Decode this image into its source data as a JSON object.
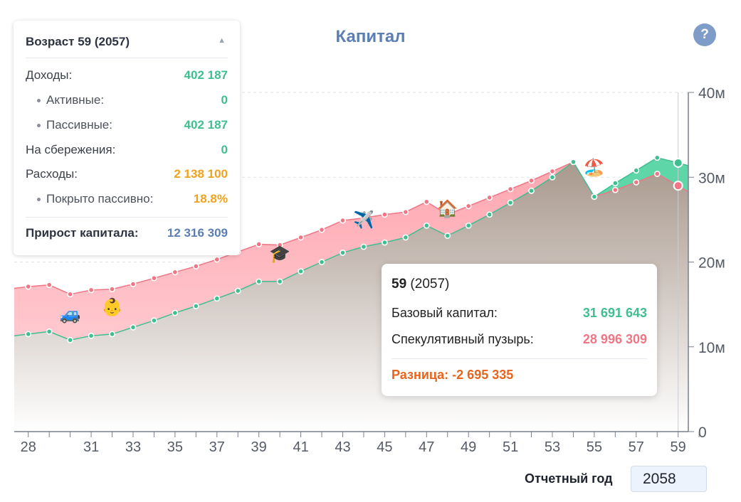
{
  "title": "Капитал",
  "help_label": "?",
  "summary": {
    "heading": "Возраст 59 (2057)",
    "rows": [
      {
        "label": "Доходы:",
        "value": "402 187",
        "sub": false,
        "color": "#3fbf8f"
      },
      {
        "label": "Активные:",
        "value": "0",
        "sub": true,
        "color": "#3fbf8f"
      },
      {
        "label": "Пассивные:",
        "value": "402 187",
        "sub": true,
        "color": "#3fbf8f"
      },
      {
        "label": "На сбережения:",
        "value": "0",
        "sub": false,
        "color": "#3fbf8f"
      },
      {
        "label": "Расходы:",
        "value": "2 138 100",
        "sub": false,
        "color": "#f0a21e"
      },
      {
        "label": "Покрыто пассивно:",
        "value": "18.8%",
        "sub": true,
        "color": "#f0a21e"
      }
    ],
    "total_label": "Прирост капитала:",
    "total_value": "12 316 309"
  },
  "tooltip": {
    "age": "59",
    "year": "(2057)",
    "base_label": "Базовый капитал:",
    "base_value": "31 691 643",
    "bubble_label": "Спекулятивный пузырь:",
    "bubble_value": "28 996 309",
    "diff_text": "Разница: -2 695 335"
  },
  "report_year": {
    "label": "Отчетный год",
    "value": "2058"
  },
  "colors": {
    "base": "#3fbf8f",
    "bubble": "#f07585",
    "accent": "#5b7fb3",
    "diff": "#e8641c"
  },
  "chart_data": {
    "type": "area",
    "x_ticks": [
      28,
      31,
      33,
      35,
      37,
      39,
      41,
      43,
      45,
      47,
      49,
      51,
      53,
      55,
      57,
      59
    ],
    "y_ticks": [
      "0",
      "10м",
      "20м",
      "30м",
      "40м"
    ],
    "ylim": [
      0,
      40
    ],
    "y_unit": "м",
    "grid": true,
    "selected_age": 59,
    "series": [
      {
        "key": "base",
        "x": [
          27,
          28,
          29,
          30,
          31,
          32,
          33,
          34,
          35,
          36,
          37,
          38,
          39,
          40,
          41,
          42,
          43,
          44,
          45,
          46,
          47,
          48,
          49,
          50,
          51,
          52,
          53,
          54,
          55,
          56,
          57,
          58,
          59,
          60
        ],
        "values": [
          11.2,
          11.5,
          11.8,
          10.8,
          11.3,
          11.5,
          12.3,
          13.1,
          14.0,
          14.8,
          15.7,
          16.6,
          17.7,
          17.7,
          18.9,
          20.0,
          21.1,
          21.8,
          22.3,
          22.9,
          24.3,
          23.1,
          24.3,
          25.6,
          27.0,
          28.4,
          30.0,
          31.8,
          27.7,
          29.3,
          30.8,
          32.3,
          31.7,
          31.0
        ]
      },
      {
        "key": "bubble",
        "x": [
          27,
          28,
          29,
          30,
          31,
          32,
          33,
          34,
          35,
          36,
          37,
          38,
          39,
          40,
          41,
          42,
          43,
          44,
          45,
          46,
          47,
          48,
          49,
          50,
          51,
          52,
          53,
          54,
          55,
          56,
          57,
          58,
          59,
          60
        ],
        "values": [
          16.8,
          17.1,
          17.3,
          16.2,
          16.7,
          16.8,
          17.4,
          18.1,
          18.8,
          19.5,
          20.3,
          21.2,
          22.1,
          22.0,
          22.9,
          23.8,
          24.9,
          25.2,
          25.6,
          25.9,
          27.1,
          25.6,
          26.6,
          27.6,
          28.6,
          29.6,
          30.7,
          31.8,
          27.7,
          28.5,
          29.4,
          30.4,
          29.0,
          27.5
        ]
      }
    ],
    "event_icons": [
      {
        "age": 30,
        "icon": "🚙",
        "value": 13.2
      },
      {
        "age": 32,
        "icon": "👶",
        "value": 14.0
      },
      {
        "age": 40,
        "icon": "🎓",
        "value": 20.3
      },
      {
        "age": 44,
        "icon": "✈️",
        "value": 24.3
      },
      {
        "age": 48,
        "icon": "🏠",
        "value": 25.6
      },
      {
        "age": 55,
        "icon": "🏖️",
        "value": 30.5
      }
    ]
  }
}
